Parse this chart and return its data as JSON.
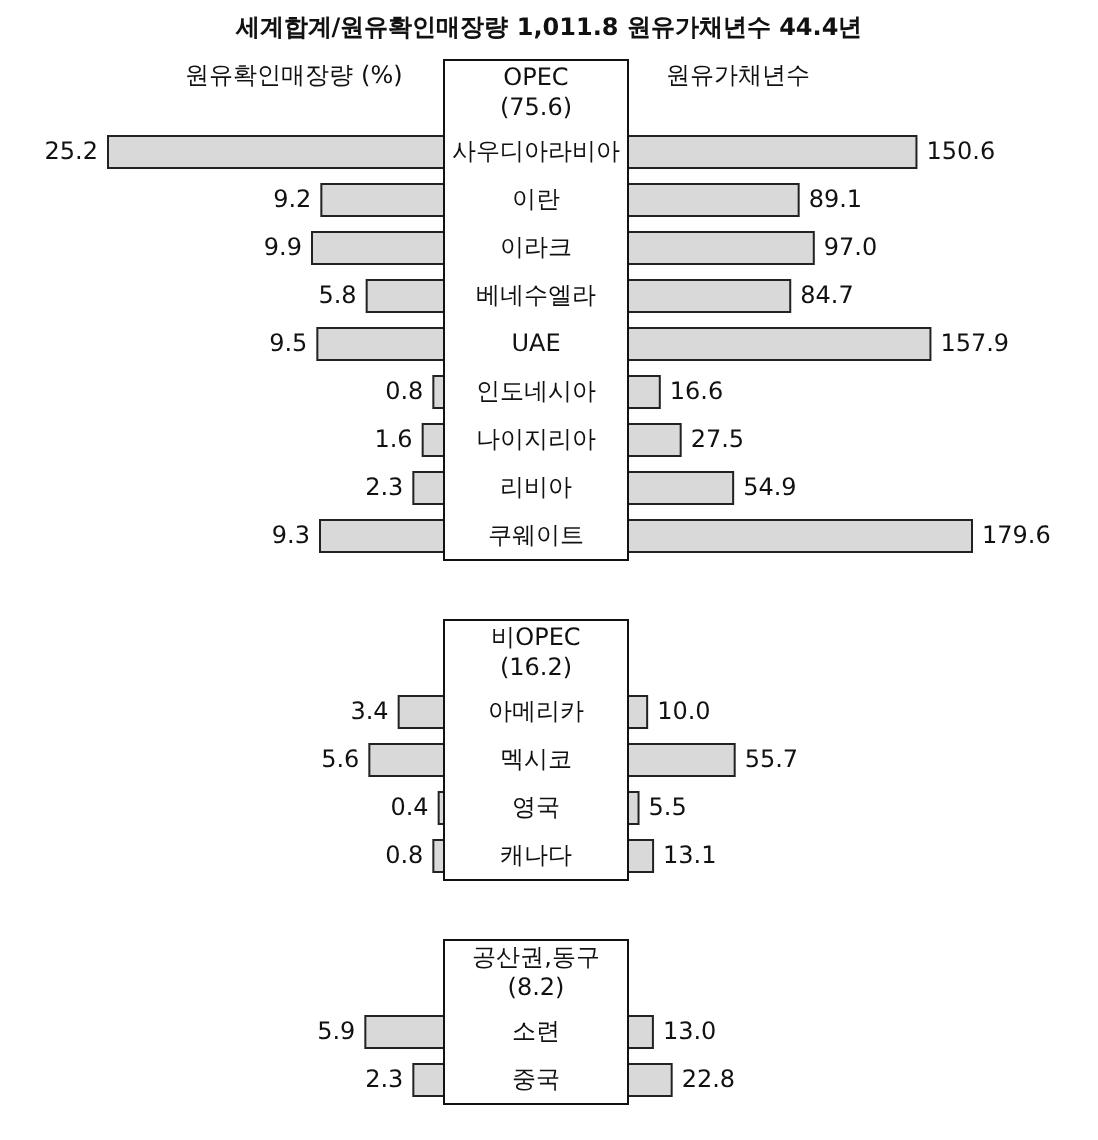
{
  "chart_data": [
    {
      "type": "bar",
      "orientation": "horizontal",
      "title": "세계합계/원유확인매장량 1,011.8 원유가채년수 44.4년",
      "subtitle": "OPEC\n(75.6)",
      "categories": [
        "사우디아라비아",
        "이란",
        "이라크",
        "베네수엘라",
        "UAE",
        "인도네시아",
        "나이지리아",
        "리비아",
        "쿠웨이트"
      ],
      "series": [
        {
          "name": "원유확인매장량 (%)",
          "color": "#d9d9d9",
          "values": [
            25.2,
            9.2,
            9.9,
            5.8,
            9.5,
            0.8,
            1.6,
            2.3,
            9.3
          ],
          "value_labels": [
            "25.2",
            "9.2",
            "9.9",
            "5.8",
            "9.5",
            "0.8",
            "1.6",
            "2.3",
            "9.3"
          ]
        }
      ]
    },
    {
      "type": "bar",
      "orientation": "horizontal",
      "categories": [
        null,
        null,
        null,
        null,
        null,
        null,
        null,
        null,
        null
      ],
      "series": [
        {
          "name": "원유가채년수",
          "color": "#d9d9d9",
          "values": [
            150.6,
            89.1,
            97.0,
            84.7,
            157.9,
            16.6,
            27.5,
            54.9,
            179.6
          ],
          "value_labels": [
            "150.6",
            "89.1",
            "97.0",
            "84.7",
            "157.9",
            "16.6",
            "27.5",
            "54.9",
            "179.6"
          ]
        }
      ]
    },
    {
      "type": "bar",
      "orientation": "horizontal",
      "subtitle": "비OPEC\n(16.2)",
      "categories": [
        "아메리카",
        "멕시코",
        "영국",
        "캐나다"
      ],
      "series": [
        {
          "color": "#d9d9d9",
          "values": [
            3.4,
            5.6,
            0.4,
            0.8
          ],
          "value_labels": [
            "3.4",
            "5.6",
            "0.4",
            "0.8"
          ]
        }
      ]
    },
    {
      "type": "bar",
      "orientation": "horizontal",
      "categories": [
        null,
        null,
        null,
        null
      ],
      "series": [
        {
          "color": "#d9d9d9",
          "values": [
            10.0,
            55.7,
            5.5,
            13.1
          ],
          "value_labels": [
            "10.0",
            "55.7",
            "5.5",
            "13.1"
          ]
        }
      ]
    },
    {
      "type": "bar",
      "orientation": "horizontal",
      "subtitle": "공산권,동구\n(8.2)",
      "categories": [
        "소련",
        "중국"
      ],
      "series": [
        {
          "color": "#d9d9d9",
          "values": [
            5.9,
            2.3
          ],
          "value_labels": [
            "5.9",
            "2.3"
          ]
        }
      ]
    },
    {
      "type": "bar",
      "orientation": "horizontal",
      "categories": [
        null,
        null
      ],
      "series": [
        {
          "color": "#d9d9d9",
          "values": [
            13.0,
            22.8
          ],
          "value_labels": [
            "13.0",
            "22.8"
          ]
        }
      ]
    }
  ]
}
